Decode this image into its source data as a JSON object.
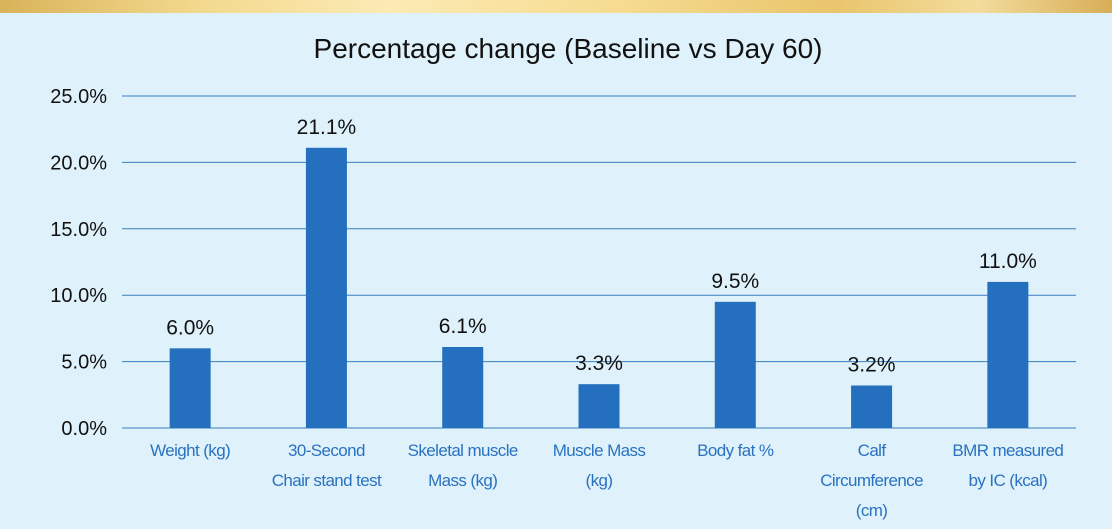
{
  "chart_data": {
    "type": "bar",
    "title": "Percentage change (Baseline vs Day 60)",
    "xlabel": "",
    "ylabel": "",
    "ylim": [
      0,
      25
    ],
    "yticks": [
      0,
      5,
      10,
      15,
      20,
      25
    ],
    "ytick_labels": [
      "0.0%",
      "5.0%",
      "10.0%",
      "15.0%",
      "20.0%",
      "25.0%"
    ],
    "grid": true,
    "legend": "none",
    "categories": [
      [
        "Weight (kg)"
      ],
      [
        "30-Second",
        "Chair stand test"
      ],
      [
        "Skeletal muscle",
        "Mass (kg)"
      ],
      [
        "Muscle Mass",
        "(kg)"
      ],
      [
        "Body fat %"
      ],
      [
        "Calf",
        "Circumference",
        "(cm)"
      ],
      [
        "BMR measured",
        "by IC (kcal)"
      ]
    ],
    "values": [
      6.0,
      21.1,
      6.1,
      3.3,
      9.5,
      3.2,
      11.0
    ],
    "data_labels": [
      "6.0%",
      "21.1%",
      "6.1%",
      "3.3%",
      "9.5%",
      "3.2%",
      "11.0%"
    ],
    "colors": {
      "bar": "#2470be",
      "grid": "#3a7fc0",
      "category_text": "#2a72c0",
      "background": "#dff1fa"
    }
  }
}
